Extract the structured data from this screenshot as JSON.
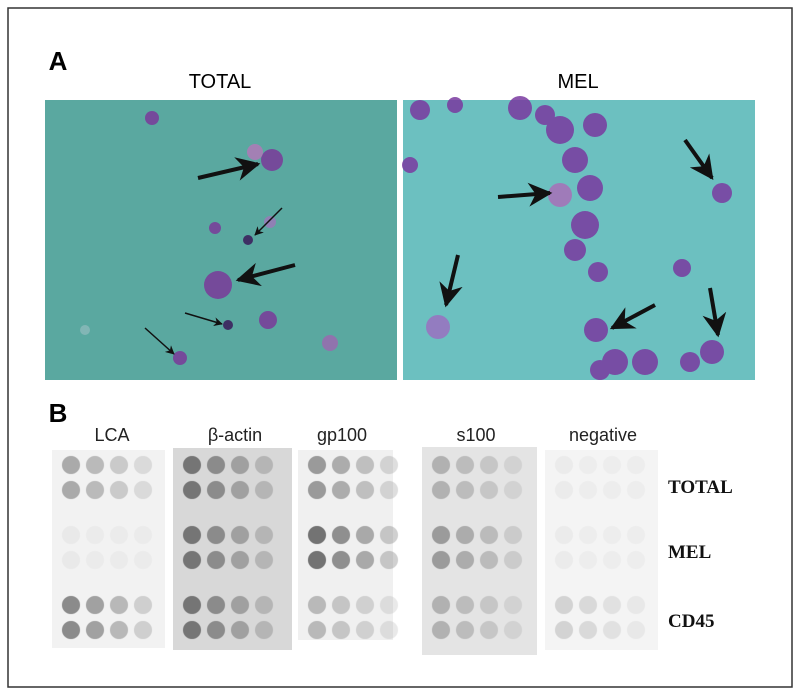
{
  "panel_a": {
    "label": "A",
    "images": [
      {
        "title": "TOTAL"
      },
      {
        "title": "MEL"
      }
    ]
  },
  "panel_b": {
    "label": "B",
    "columns": [
      "LCA",
      "β-actin",
      "gp100",
      "s100",
      "negative"
    ],
    "rows": [
      "TOTAL",
      "MEL",
      "CD45"
    ]
  }
}
